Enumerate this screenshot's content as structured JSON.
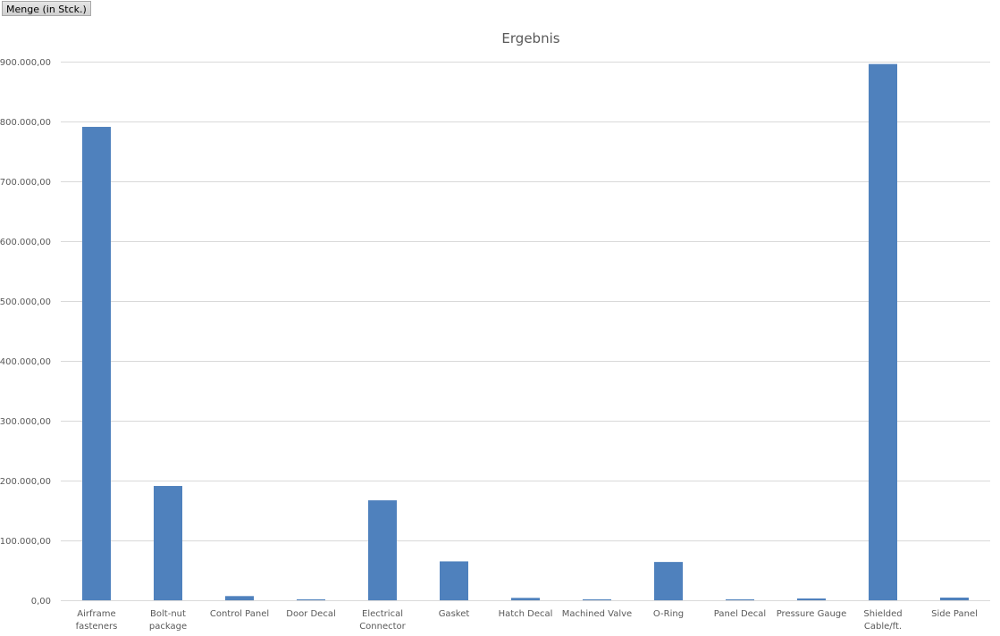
{
  "field_button": {
    "label": "Menge (in Stck.)"
  },
  "colors": {
    "bar": "#4f81bd",
    "grid": "#d9d9d9",
    "text": "#595959"
  },
  "chart_data": {
    "type": "bar",
    "title": "Ergebnis",
    "xlabel": "",
    "ylabel": "",
    "ylim": [
      0,
      900000
    ],
    "yticks": [
      0,
      100000,
      200000,
      300000,
      400000,
      500000,
      600000,
      700000,
      800000,
      900000
    ],
    "ytick_labels": [
      "0,00",
      "100.000,00",
      "200.000,00",
      "300.000,00",
      "400.000,00",
      "500.000,00",
      "600.000,00",
      "700.000,00",
      "800.000,00",
      "900.000,00"
    ],
    "grid": true,
    "legend": "none",
    "categories": [
      [
        "Airframe",
        "fasteners"
      ],
      [
        "Bolt-nut",
        "package"
      ],
      [
        "Control Panel"
      ],
      [
        "Door Decal"
      ],
      [
        "Electrical",
        "Connector"
      ],
      [
        "Gasket"
      ],
      [
        "Hatch Decal"
      ],
      [
        "Machined Valve"
      ],
      [
        "O-Ring"
      ],
      [
        "Panel Decal"
      ],
      [
        "Pressure Gauge"
      ],
      [
        "Shielded",
        "Cable/ft."
      ],
      [
        "Side Panel"
      ]
    ],
    "values": [
      791000,
      191000,
      7000,
      1500,
      167000,
      65000,
      4000,
      1500,
      64000,
      1500,
      3000,
      896000,
      4500
    ]
  }
}
